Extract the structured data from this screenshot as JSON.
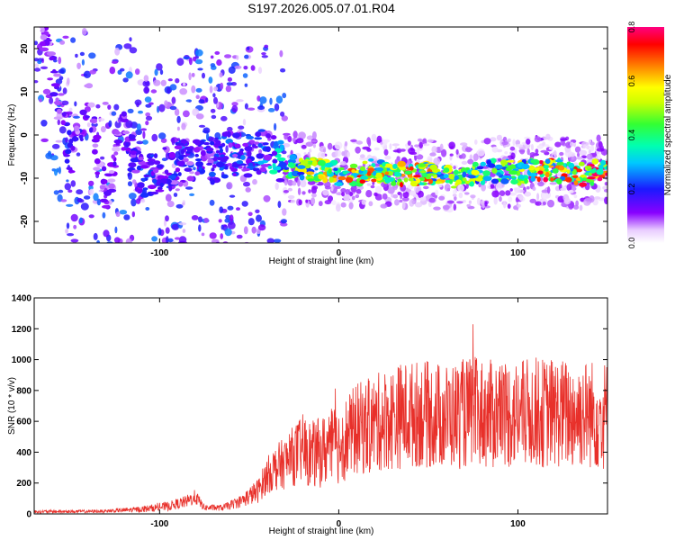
{
  "title": "S197.2026.005.07.01.R04",
  "chart_data": [
    {
      "type": "heatmap",
      "xlabel": "Height of straight line (km)",
      "ylabel": "Frequency (Hz)",
      "xlim": [
        -170,
        150
      ],
      "ylim": [
        -25,
        25
      ],
      "x_ticks": [
        -100,
        0,
        100
      ],
      "x_tick_labels": [
        "-100",
        "0",
        "100"
      ],
      "y_ticks": [
        -20,
        -10,
        0,
        10,
        20
      ],
      "y_tick_labels": [
        "-20",
        "-10",
        "0",
        "10",
        "20"
      ],
      "colorbar": {
        "label": "Normalized spectral amplitude",
        "range": [
          0,
          0.8
        ],
        "ticks": [
          0,
          0.2,
          0.4,
          0.6,
          0.8
        ],
        "tick_labels": [
          "0.0",
          "0.2",
          "0.4",
          "0.6",
          "0.8"
        ]
      },
      "description_points": [
        {
          "x": -160,
          "y": 15,
          "v": 0.15
        },
        {
          "x": -150,
          "y": -5,
          "v": 0.18
        },
        {
          "x": -140,
          "y": 8,
          "v": 0.15
        },
        {
          "x": -130,
          "y": -15,
          "v": 0.14
        },
        {
          "x": -120,
          "y": 2,
          "v": 0.15
        },
        {
          "x": -110,
          "y": -10,
          "v": 0.22
        },
        {
          "x": -100,
          "y": -8,
          "v": 0.2
        },
        {
          "x": -90,
          "y": -7,
          "v": 0.22
        },
        {
          "x": -80,
          "y": -5,
          "v": 0.2
        },
        {
          "x": -70,
          "y": -6,
          "v": 0.22
        },
        {
          "x": -60,
          "y": -4,
          "v": 0.24
        },
        {
          "x": -50,
          "y": -5,
          "v": 0.24
        },
        {
          "x": -40,
          "y": -3,
          "v": 0.28
        },
        {
          "x": -30,
          "y": -7,
          "v": 0.45
        },
        {
          "x": -20,
          "y": -8,
          "v": 0.55
        },
        {
          "x": -10,
          "y": -8,
          "v": 0.6
        },
        {
          "x": 0,
          "y": -9,
          "v": 0.6
        },
        {
          "x": 10,
          "y": -9,
          "v": 0.7
        },
        {
          "x": 20,
          "y": -8,
          "v": 0.65
        },
        {
          "x": 30,
          "y": -9,
          "v": 0.6
        },
        {
          "x": 40,
          "y": -9,
          "v": 0.75
        },
        {
          "x": 50,
          "y": -9,
          "v": 0.65
        },
        {
          "x": 60,
          "y": -10,
          "v": 0.55
        },
        {
          "x": 70,
          "y": -9,
          "v": 0.55
        },
        {
          "x": 80,
          "y": -9,
          "v": 0.5
        },
        {
          "x": 90,
          "y": -8,
          "v": 0.55
        },
        {
          "x": 100,
          "y": -9,
          "v": 0.5
        },
        {
          "x": 110,
          "y": -8,
          "v": 0.7
        },
        {
          "x": 120,
          "y": -8,
          "v": 0.75
        },
        {
          "x": 130,
          "y": -9,
          "v": 0.65
        },
        {
          "x": 140,
          "y": -9,
          "v": 0.75
        },
        {
          "x": 148,
          "y": -8,
          "v": 0.8
        }
      ]
    },
    {
      "type": "line",
      "xlabel": "Height of straight line (km)",
      "ylabel": "SNR (10 * v/v)",
      "xlim": [
        -170,
        150
      ],
      "ylim": [
        0,
        1400
      ],
      "x_ticks": [
        -100,
        0,
        100
      ],
      "x_tick_labels": [
        "-100",
        "0",
        "100"
      ],
      "y_ticks": [
        0,
        200,
        400,
        600,
        800,
        1000,
        1200,
        1400
      ],
      "y_tick_labels": [
        "0",
        "200",
        "400",
        "600",
        "800",
        "1000",
        "1200",
        "1400"
      ],
      "series": [
        {
          "name": "SNR",
          "color": "#e8302a",
          "x": [
            -170,
            -150,
            -130,
            -110,
            -95,
            -85,
            -80,
            -75,
            -65,
            -55,
            -45,
            -40,
            -35,
            -30,
            -25,
            -20,
            -15,
            -10,
            -5,
            0,
            5,
            10,
            15,
            20,
            25,
            30,
            35,
            40,
            45,
            50,
            55,
            60,
            65,
            70,
            75,
            80,
            85,
            90,
            95,
            100,
            105,
            110,
            115,
            120,
            125,
            130,
            135,
            140,
            145,
            150
          ],
          "y": [
            15,
            15,
            18,
            30,
            50,
            80,
            110,
            40,
            40,
            80,
            150,
            250,
            300,
            330,
            380,
            420,
            380,
            400,
            430,
            450,
            500,
            550,
            560,
            580,
            610,
            620,
            640,
            640,
            650,
            640,
            640,
            630,
            640,
            650,
            660,
            650,
            640,
            660,
            650,
            640,
            650,
            660,
            650,
            660,
            650,
            640,
            650,
            650,
            640,
            640
          ],
          "spread": [
            10,
            10,
            10,
            20,
            30,
            40,
            50,
            20,
            20,
            40,
            80,
            120,
            150,
            170,
            200,
            230,
            220,
            230,
            250,
            260,
            280,
            300,
            310,
            320,
            330,
            340,
            350,
            350,
            350,
            350,
            350,
            350,
            350,
            360,
            360,
            360,
            360,
            360,
            360,
            360,
            360,
            360,
            360,
            360,
            360,
            360,
            360,
            360,
            360,
            360
          ]
        }
      ]
    }
  ]
}
